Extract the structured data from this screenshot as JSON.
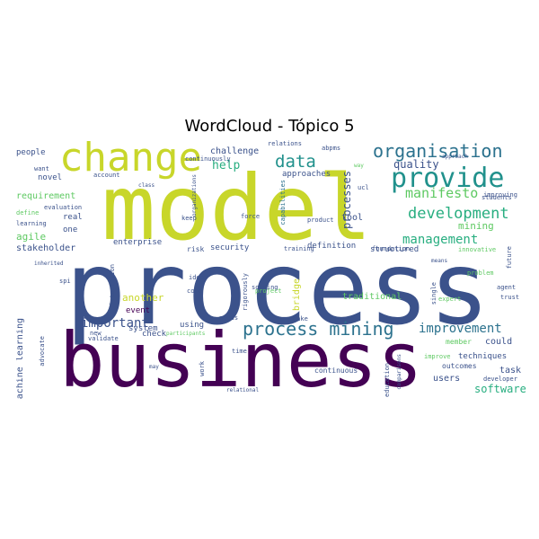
{
  "title": "WordCloud - Tópico 5",
  "colors": {
    "dark_purple": "#440154",
    "navy": "#3b528b",
    "blue": "#2c728e",
    "teal": "#21918c",
    "green": "#28ae80",
    "light_green": "#5ec962",
    "yellow": "#c8d62a"
  },
  "words": [
    {
      "text": "process",
      "color": "#3b528b"
    },
    {
      "text": "model",
      "color": "#c8d62a"
    },
    {
      "text": "business",
      "color": "#440154"
    },
    {
      "text": "change",
      "color": "#c8d62a"
    },
    {
      "text": "provide",
      "color": "#21918c"
    },
    {
      "text": "process mining",
      "color": "#2c728e"
    },
    {
      "text": "organisation",
      "color": "#2c728e"
    },
    {
      "text": "data",
      "color": "#21918c"
    },
    {
      "text": "development",
      "color": "#28ae80"
    },
    {
      "text": "manifesto",
      "color": "#5ec962"
    },
    {
      "text": "management",
      "color": "#28ae80"
    },
    {
      "text": "improvement",
      "color": "#2c728e"
    },
    {
      "text": "important",
      "color": "#3b528b"
    },
    {
      "text": "help",
      "color": "#28ae80"
    },
    {
      "text": "quality",
      "color": "#3b528b"
    },
    {
      "text": "processes",
      "color": "#3b528b"
    },
    {
      "text": "mining",
      "color": "#5ec962"
    },
    {
      "text": "software",
      "color": "#28ae80"
    },
    {
      "text": "challenge",
      "color": "#3b528b"
    },
    {
      "text": "requirement",
      "color": "#5ec962"
    },
    {
      "text": "agile",
      "color": "#5ec962"
    },
    {
      "text": "stakeholder",
      "color": "#3b528b"
    },
    {
      "text": "machine learning",
      "color": "#3b528b"
    },
    {
      "text": "system",
      "color": "#3b528b"
    },
    {
      "text": "another",
      "color": "#c8d62a"
    },
    {
      "text": "event",
      "color": "#440154"
    },
    {
      "text": "enterprise",
      "color": "#3b528b"
    },
    {
      "text": "security",
      "color": "#3b528b"
    },
    {
      "text": "definition",
      "color": "#3b528b"
    },
    {
      "text": "tool",
      "color": "#3b528b"
    },
    {
      "text": "structured",
      "color": "#3b528b"
    },
    {
      "text": "traditional",
      "color": "#5ec962"
    },
    {
      "text": "approaches",
      "color": "#3b528b"
    },
    {
      "text": "techniques",
      "color": "#3b528b"
    },
    {
      "text": "task",
      "color": "#3b528b"
    },
    {
      "text": "could",
      "color": "#3b528b"
    },
    {
      "text": "users",
      "color": "#3b528b"
    },
    {
      "text": "bridge",
      "color": "#c8d62a"
    },
    {
      "text": "novel",
      "color": "#3b528b"
    },
    {
      "text": "real",
      "color": "#3b528b"
    },
    {
      "text": "one",
      "color": "#3b528b"
    },
    {
      "text": "people",
      "color": "#3b528b"
    },
    {
      "text": "using",
      "color": "#3b528b"
    },
    {
      "text": "check",
      "color": "#3b528b"
    },
    {
      "text": "risk",
      "color": "#3b528b"
    },
    {
      "text": "member",
      "color": "#5ec962"
    },
    {
      "text": "continuous",
      "color": "#3b528b"
    },
    {
      "text": "outcomes",
      "color": "#3b528b"
    },
    {
      "text": "relations",
      "color": "#3b528b"
    },
    {
      "text": "abpms",
      "color": "#3b528b"
    },
    {
      "text": "continuously",
      "color": "#3b528b"
    },
    {
      "text": "capabilities",
      "color": "#2c728e"
    },
    {
      "text": "evaluation",
      "color": "#3b528b"
    },
    {
      "text": "keep",
      "color": "#3b528b"
    },
    {
      "text": "force",
      "color": "#3b528b"
    },
    {
      "text": "product",
      "color": "#3b528b"
    },
    {
      "text": "training",
      "color": "#3b528b"
    },
    {
      "text": "foundation",
      "color": "#3b528b"
    },
    {
      "text": "innovative",
      "color": "#5ec962"
    },
    {
      "text": "problem",
      "color": "#5ec962"
    },
    {
      "text": "idea",
      "color": "#3b528b"
    },
    {
      "text": "core",
      "color": "#3b528b"
    },
    {
      "text": "solving",
      "color": "#3b528b"
    },
    {
      "text": "project",
      "color": "#5ec962"
    },
    {
      "text": "make",
      "color": "#3b528b"
    },
    {
      "text": "needs",
      "color": "#3b528b"
    },
    {
      "text": "time",
      "color": "#3b528b"
    },
    {
      "text": "improve",
      "color": "#5ec962"
    },
    {
      "text": "developer",
      "color": "#3b528b"
    },
    {
      "text": "advocate",
      "color": "#3b528b"
    },
    {
      "text": "validate",
      "color": "#3b528b"
    },
    {
      "text": "participants",
      "color": "#5ec962"
    },
    {
      "text": "relational",
      "color": "#3b528b"
    },
    {
      "text": "agent",
      "color": "#3b528b"
    },
    {
      "text": "trust",
      "color": "#3b528b"
    },
    {
      "text": "expert",
      "color": "#5ec962"
    },
    {
      "text": "students",
      "color": "#3b528b"
    },
    {
      "text": "improving",
      "color": "#3b528b"
    },
    {
      "text": "approach",
      "color": "#3b528b"
    },
    {
      "text": "want",
      "color": "#3b528b"
    },
    {
      "text": "account",
      "color": "#3b528b"
    },
    {
      "text": "class",
      "color": "#3b528b"
    },
    {
      "text": "define",
      "color": "#5ec962"
    },
    {
      "text": "learning",
      "color": "#3b528b"
    },
    {
      "text": "inherited",
      "color": "#3b528b"
    },
    {
      "text": "spi",
      "color": "#3b528b"
    },
    {
      "text": "new",
      "color": "#3b528b"
    },
    {
      "text": "integration",
      "color": "#3b528b"
    },
    {
      "text": "organizations",
      "color": "#3b528b"
    },
    {
      "text": "rigorously",
      "color": "#3b528b"
    },
    {
      "text": "means",
      "color": "#3b528b"
    },
    {
      "text": "use",
      "color": "#3b528b"
    },
    {
      "text": "single",
      "color": "#3b528b"
    },
    {
      "text": "future",
      "color": "#3b528b"
    },
    {
      "text": "ucl",
      "color": "#3b528b"
    },
    {
      "text": "may",
      "color": "#3b528b"
    },
    {
      "text": "education",
      "color": "#3b528b"
    },
    {
      "text": "comparisons",
      "color": "#3b528b"
    },
    {
      "text": "work",
      "color": "#3b528b"
    },
    {
      "text": "way",
      "color": "#5ec962"
    }
  ]
}
